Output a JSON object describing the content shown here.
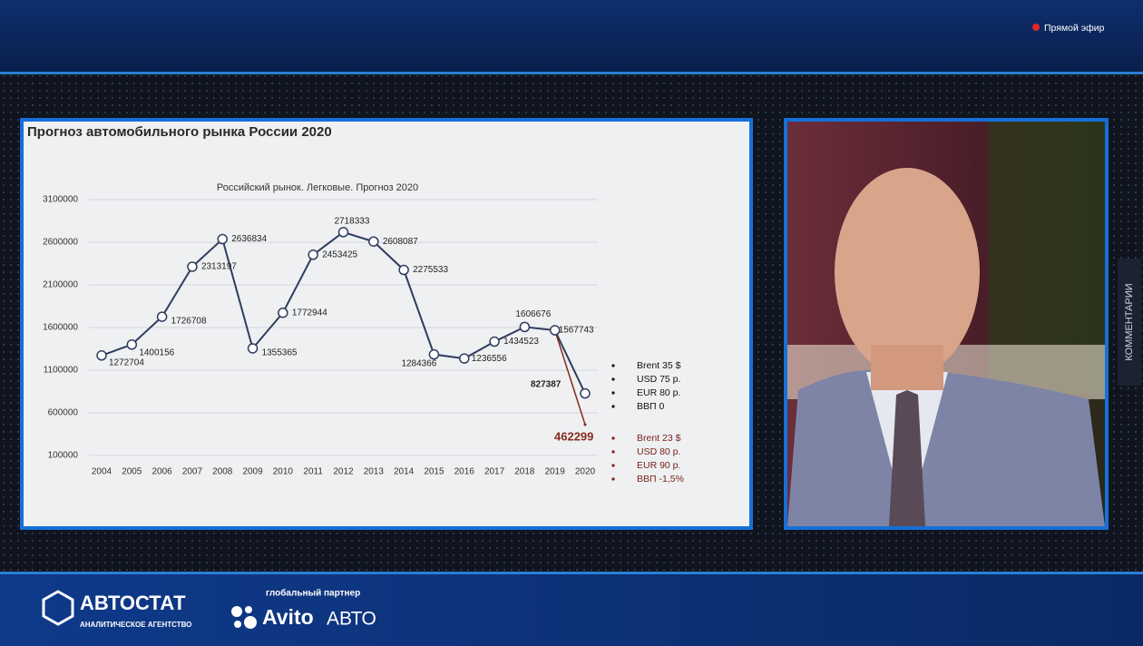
{
  "header": {
    "live": "Прямой эфир"
  },
  "sidebar": {
    "comments": "КОММЕНТАРИИ"
  },
  "slide": {
    "title": "Прогноз автомобильного рынка России 2020",
    "scenarios": [
      {
        "items": [
          "Brent 35 $",
          "USD 75 р.",
          "EUR 80 р.",
          "ВВП 0"
        ]
      },
      {
        "items": [
          "Brent 23 $",
          "USD 80 р.",
          "EUR 90 р.",
          "ВВП -1,5%"
        ]
      }
    ]
  },
  "chart_data": {
    "type": "line",
    "title": "Российский рынок. Легковые. Прогноз 2020",
    "categories": [
      "2004",
      "2005",
      "2006",
      "2007",
      "2008",
      "2009",
      "2010",
      "2011",
      "2012",
      "2013",
      "2014",
      "2015",
      "2016",
      "2017",
      "2018",
      "2019",
      "2020"
    ],
    "series": [
      {
        "color": "#2e3d5e",
        "values": [
          1272704,
          1400156,
          1726708,
          2313197,
          2636834,
          1355365,
          1772944,
          2453425,
          2718333,
          2608087,
          2275533,
          1284366,
          1236556,
          1434523,
          1606676,
          1567743,
          827387
        ]
      },
      {
        "color": "#8a2b1c",
        "values": [
          null,
          null,
          null,
          null,
          null,
          null,
          null,
          null,
          null,
          null,
          null,
          null,
          null,
          null,
          null,
          1567743,
          462299
        ]
      }
    ],
    "ylim": [
      100000,
      3100000
    ],
    "yticks": [
      100000,
      600000,
      1100000,
      1600000,
      2100000,
      2600000,
      3100000
    ],
    "grid": true
  },
  "footer": {
    "brand": "АВТОСТАТ",
    "brand_sub": "АНАЛИТИЧЕСКОЕ АГЕНТСТВО",
    "partner_label": "глобальный партнер",
    "partner": "Avito",
    "partner_suffix": "АВТО"
  }
}
